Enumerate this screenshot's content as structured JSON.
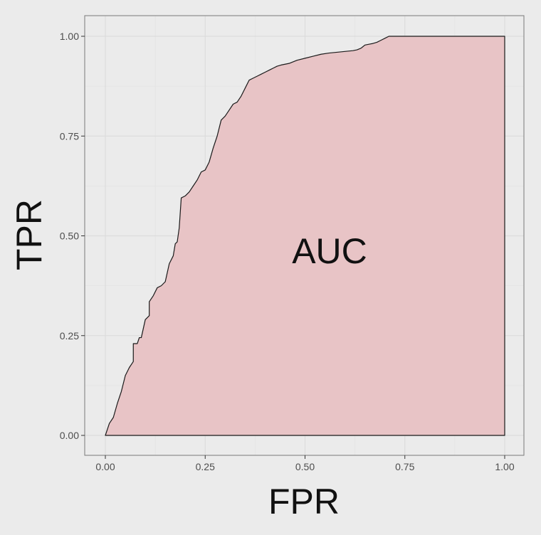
{
  "chart_data": {
    "type": "area",
    "title": "",
    "xlabel": "FPR",
    "ylabel": "TPR",
    "annotation": "AUC",
    "xlim": [
      0,
      1
    ],
    "ylim": [
      0,
      1
    ],
    "x_ticks": [
      "0.00",
      "0.25",
      "0.50",
      "0.75",
      "1.00"
    ],
    "y_ticks": [
      "0.00",
      "0.25",
      "0.50",
      "0.75",
      "1.00"
    ],
    "grid": true,
    "legend": "none",
    "colors": {
      "fill": "#e8c4c6",
      "line": "#1a1a1a",
      "panel": "#ebebeb",
      "grid_major": "#dcdcdc",
      "grid_minor": "#e3e3e3",
      "border": "#7a7a7a",
      "tick_text": "#4d4d4d"
    },
    "series": [
      {
        "x": [
          0.0,
          0.01,
          0.02,
          0.03,
          0.04,
          0.05,
          0.06,
          0.07,
          0.07,
          0.08,
          0.085,
          0.09,
          0.1,
          0.11,
          0.11,
          0.12,
          0.13,
          0.14,
          0.15,
          0.16,
          0.17,
          0.175,
          0.18,
          0.185,
          0.19,
          0.2,
          0.21,
          0.22,
          0.23,
          0.24,
          0.25,
          0.26,
          0.27,
          0.28,
          0.29,
          0.3,
          0.31,
          0.32,
          0.33,
          0.34,
          0.35,
          0.36,
          0.37,
          0.38,
          0.39,
          0.4,
          0.41,
          0.42,
          0.43,
          0.44,
          0.45,
          0.46,
          0.48,
          0.5,
          0.52,
          0.54,
          0.56,
          0.58,
          0.6,
          0.62,
          0.63,
          0.64,
          0.65,
          0.66,
          0.67,
          0.68,
          0.69,
          0.7,
          0.71,
          0.72,
          0.75,
          0.8,
          0.9,
          1.0
        ],
        "y": [
          0.0,
          0.03,
          0.045,
          0.08,
          0.11,
          0.15,
          0.17,
          0.185,
          0.23,
          0.23,
          0.245,
          0.245,
          0.29,
          0.3,
          0.335,
          0.35,
          0.37,
          0.375,
          0.385,
          0.43,
          0.45,
          0.48,
          0.485,
          0.52,
          0.595,
          0.6,
          0.61,
          0.625,
          0.64,
          0.66,
          0.665,
          0.685,
          0.72,
          0.75,
          0.79,
          0.8,
          0.815,
          0.83,
          0.835,
          0.85,
          0.87,
          0.89,
          0.895,
          0.9,
          0.905,
          0.91,
          0.915,
          0.92,
          0.925,
          0.928,
          0.93,
          0.932,
          0.94,
          0.945,
          0.95,
          0.955,
          0.958,
          0.96,
          0.962,
          0.964,
          0.966,
          0.97,
          0.978,
          0.98,
          0.982,
          0.985,
          0.99,
          0.995,
          1.0,
          1.0,
          1.0,
          1.0,
          1.0,
          1.0
        ]
      }
    ]
  }
}
